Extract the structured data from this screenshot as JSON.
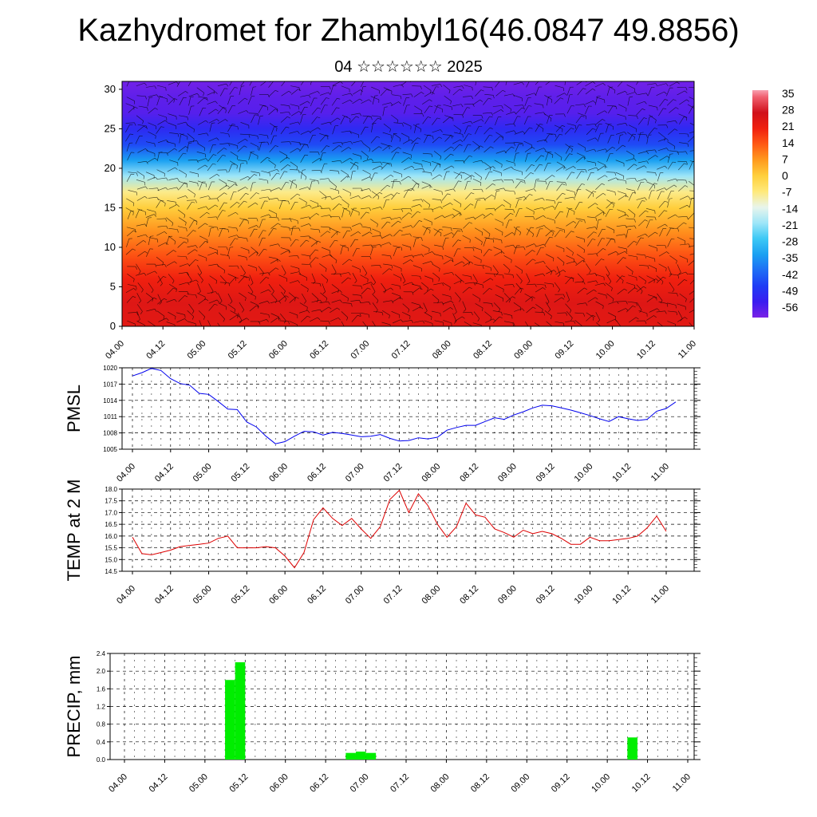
{
  "title": "Kazhydromet for Zhambyl16(46.0847 49.8856)",
  "subtitle": "04 ☆☆☆☆☆☆ 2025",
  "colors": {
    "pmsl_line": "#0000ee",
    "temp_line": "#dd0000",
    "precip_bar": "#00ee00",
    "grid": "#000000"
  },
  "chart_data": [
    {
      "id": "cross_section",
      "type": "heatmap",
      "title": "",
      "xlabel": "",
      "ylabel": "",
      "x_ticks": [
        "04.00",
        "04.12",
        "05.00",
        "05.12",
        "06.00",
        "06.12",
        "07.00",
        "07.12",
        "08.00",
        "08.12",
        "09.00",
        "09.12",
        "10.00",
        "10.12",
        "11.00"
      ],
      "y_ticks": [
        "0",
        "5",
        "10",
        "15",
        "20",
        "25",
        "30"
      ],
      "ylim": [
        0,
        31
      ],
      "overlay": "wind barbs",
      "colorbar": {
        "labels": [
          "35",
          "28",
          "21",
          "14",
          "7",
          "0",
          "-7",
          "-14",
          "-21",
          "-28",
          "-35",
          "-42",
          "-49",
          "-56"
        ],
        "range": [
          -63,
          38
        ]
      },
      "field_profile": {
        "levels": [
          0,
          3,
          6,
          9,
          12,
          15,
          17,
          19,
          21,
          23,
          25,
          27,
          29,
          31
        ],
        "temps": [
          24,
          25,
          21,
          15,
          8,
          0,
          -8,
          -21,
          -35,
          -47,
          -53,
          -59,
          -60,
          -62
        ]
      }
    },
    {
      "id": "pmsl",
      "type": "line",
      "title": "",
      "ylabel": "PMSL",
      "xlabel": "",
      "x_ticks": [
        "04.00",
        "04.12",
        "05.00",
        "05.12",
        "06.00",
        "06.12",
        "07.00",
        "07.12",
        "08.00",
        "08.12",
        "09.00",
        "09.12",
        "10.00",
        "10.12",
        "11.00"
      ],
      "y_ticks": [
        "1020",
        "1017",
        "1014",
        "1011",
        "1008",
        "1005"
      ],
      "ylim": [
        1005,
        1020
      ],
      "step_hours": 3,
      "values": [
        1018.5,
        1019.1,
        1019.9,
        1019.5,
        1018.0,
        1017.1,
        1016.8,
        1015.3,
        1015.1,
        1013.8,
        1012.4,
        1012.3,
        1010.0,
        1009.1,
        1007.4,
        1006.0,
        1006.4,
        1007.4,
        1008.3,
        1008.2,
        1007.6,
        1008.1,
        1007.9,
        1007.6,
        1007.3,
        1007.4,
        1007.7,
        1007.0,
        1006.5,
        1006.6,
        1007.1,
        1006.9,
        1007.2,
        1008.5,
        1009.0,
        1009.4,
        1009.4,
        1010.1,
        1010.8,
        1010.5,
        1011.3,
        1011.9,
        1012.6,
        1013.1,
        1013.0,
        1012.6,
        1012.2,
        1011.7,
        1011.2,
        1010.6,
        1010.1,
        1011.0,
        1010.6,
        1010.3,
        1010.5,
        1012.0,
        1012.5,
        1013.7
      ]
    },
    {
      "id": "temp",
      "type": "line",
      "title": "",
      "ylabel": "TEMP at 2 M",
      "xlabel": "",
      "x_ticks": [
        "04.00",
        "04.12",
        "05.00",
        "05.12",
        "06.00",
        "06.12",
        "07.00",
        "07.12",
        "08.00",
        "08.12",
        "09.00",
        "09.12",
        "10.00",
        "10.12",
        "11.00"
      ],
      "y_ticks": [
        "18.0",
        "17.5",
        "17.0",
        "16.5",
        "16.0",
        "15.5",
        "15.0",
        "14.5"
      ],
      "ylim": [
        14.5,
        18.0
      ],
      "step_hours": 3,
      "values": [
        15.95,
        15.25,
        15.2,
        15.3,
        15.4,
        15.55,
        15.6,
        15.65,
        15.7,
        15.9,
        16.0,
        15.5,
        15.5,
        15.5,
        15.55,
        15.5,
        15.15,
        14.65,
        15.3,
        16.7,
        17.2,
        16.75,
        16.45,
        16.75,
        16.3,
        15.9,
        16.4,
        17.55,
        17.95,
        17.0,
        17.8,
        17.3,
        16.5,
        15.95,
        16.4,
        17.4,
        16.9,
        16.8,
        16.3,
        16.15,
        15.95,
        16.25,
        16.1,
        16.2,
        16.1,
        15.9,
        15.65,
        15.65,
        15.95,
        15.8,
        15.8,
        15.85,
        15.9,
        16.0,
        16.35,
        16.85,
        16.2
      ]
    },
    {
      "id": "precip",
      "type": "bar",
      "title": "",
      "ylabel": "PRECIP, mm",
      "xlabel": "",
      "x_ticks": [
        "04.00",
        "04.12",
        "05.00",
        "05.12",
        "06.00",
        "06.12",
        "07.00",
        "07.12",
        "08.00",
        "08.12",
        "09.00",
        "09.12",
        "10.00",
        "10.12",
        "11.00"
      ],
      "y_ticks": [
        "2.4",
        "2.0",
        "1.6",
        "1.2",
        "0.8",
        "0.4",
        "0.0"
      ],
      "ylim": [
        0,
        2.4
      ],
      "bar_width_hours": 3,
      "bars": [
        {
          "start_hour": 30,
          "value": 1.8
        },
        {
          "start_hour": 33,
          "value": 2.2
        },
        {
          "start_hour": 66,
          "value": 0.15
        },
        {
          "start_hour": 69,
          "value": 0.18
        },
        {
          "start_hour": 72,
          "value": 0.15
        },
        {
          "start_hour": 150,
          "value": 0.5
        }
      ]
    }
  ]
}
